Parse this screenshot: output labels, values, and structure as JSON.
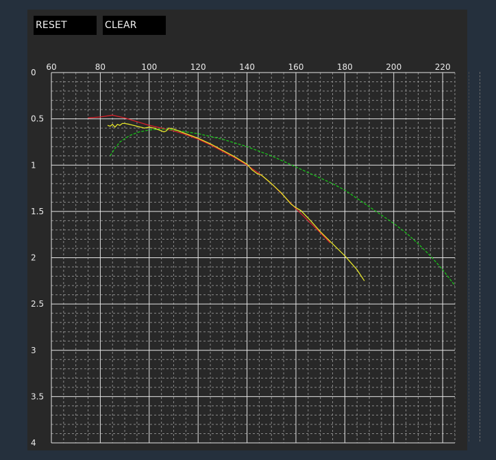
{
  "toolbar": {
    "reset_label": "RESET",
    "clear_label": "CLEAR"
  },
  "colors": {
    "background": "#25303d",
    "panel": "#282828",
    "grid_major": "#e6e6e6",
    "grid_minor": "#8a8a8a",
    "text": "#eaeaea"
  },
  "chart_data": {
    "type": "line",
    "title": "",
    "xlabel": "",
    "ylabel": "",
    "xlim": [
      60,
      225
    ],
    "ylim": [
      0,
      4
    ],
    "y_inverted": true,
    "x_ticks": [
      60,
      80,
      100,
      120,
      140,
      160,
      180,
      200,
      220
    ],
    "x_tick_labels": [
      "60",
      "80",
      "100",
      "120",
      "140",
      "160",
      "180",
      "200",
      "220"
    ],
    "y_ticks": [
      0,
      0.5,
      1,
      1.5,
      2,
      2.5,
      3,
      3.5,
      4
    ],
    "y_tick_labels": [
      "0",
      "0.5",
      "1",
      "1.5",
      "2",
      "2.5",
      "3",
      "3.5",
      "4"
    ],
    "grid": true,
    "legend": "none",
    "series": [
      {
        "color": "#d9212a",
        "points": [
          [
            75,
            0.49
          ],
          [
            80,
            0.48
          ],
          [
            85,
            0.46
          ],
          [
            90,
            0.49
          ],
          [
            95,
            0.53
          ],
          [
            100,
            0.57
          ],
          [
            105,
            0.6
          ],
          [
            110,
            0.63
          ],
          [
            115,
            0.67
          ],
          [
            120,
            0.72
          ],
          [
            125,
            0.78
          ],
          [
            130,
            0.85
          ],
          [
            135,
            0.92
          ],
          [
            140,
            1.0
          ],
          [
            145,
            1.09
          ],
          [
            150,
            1.2
          ],
          [
            155,
            1.33
          ],
          [
            160,
            1.47
          ],
          [
            165,
            1.6
          ],
          [
            170,
            1.73
          ],
          [
            174,
            1.84
          ]
        ]
      },
      {
        "color": "#19c419",
        "points": [
          [
            84,
            0.9
          ],
          [
            86,
            0.82
          ],
          [
            88,
            0.75
          ],
          [
            92,
            0.68
          ],
          [
            96,
            0.64
          ],
          [
            100,
            0.62
          ],
          [
            105,
            0.61
          ],
          [
            110,
            0.62
          ],
          [
            115,
            0.64
          ],
          [
            120,
            0.66
          ],
          [
            125,
            0.69
          ],
          [
            130,
            0.72
          ],
          [
            135,
            0.76
          ],
          [
            140,
            0.8
          ],
          [
            145,
            0.85
          ],
          [
            150,
            0.9
          ],
          [
            155,
            0.96
          ],
          [
            160,
            1.02
          ],
          [
            165,
            1.08
          ],
          [
            170,
            1.14
          ],
          [
            175,
            1.2
          ],
          [
            180,
            1.27
          ],
          [
            185,
            1.36
          ],
          [
            190,
            1.45
          ],
          [
            195,
            1.54
          ],
          [
            200,
            1.63
          ],
          [
            205,
            1.73
          ],
          [
            210,
            1.85
          ],
          [
            215,
            1.98
          ],
          [
            220,
            2.13
          ],
          [
            225,
            2.3
          ]
        ]
      },
      {
        "color": "#e6e62a",
        "points": [
          [
            83,
            0.57
          ],
          [
            84,
            0.58
          ],
          [
            85,
            0.56
          ],
          [
            86,
            0.59
          ],
          [
            87,
            0.56
          ],
          [
            88,
            0.57
          ],
          [
            89,
            0.55
          ],
          [
            90,
            0.55
          ],
          [
            92,
            0.56
          ],
          [
            95,
            0.58
          ],
          [
            98,
            0.6
          ],
          [
            100,
            0.59
          ],
          [
            102,
            0.6
          ],
          [
            104,
            0.62
          ],
          [
            106,
            0.64
          ],
          [
            107,
            0.63
          ],
          [
            108,
            0.6
          ],
          [
            110,
            0.61
          ],
          [
            113,
            0.64
          ],
          [
            116,
            0.67
          ],
          [
            120,
            0.71
          ],
          [
            125,
            0.77
          ],
          [
            130,
            0.84
          ],
          [
            135,
            0.91
          ],
          [
            140,
            0.99
          ],
          [
            142,
            1.05
          ],
          [
            144,
            1.09
          ],
          [
            146,
            1.11
          ],
          [
            150,
            1.2
          ],
          [
            154,
            1.3
          ],
          [
            158,
            1.42
          ],
          [
            160,
            1.46
          ],
          [
            162,
            1.49
          ],
          [
            166,
            1.6
          ],
          [
            170,
            1.72
          ],
          [
            175,
            1.85
          ],
          [
            180,
            1.98
          ],
          [
            185,
            2.13
          ],
          [
            188,
            2.25
          ]
        ]
      }
    ]
  }
}
